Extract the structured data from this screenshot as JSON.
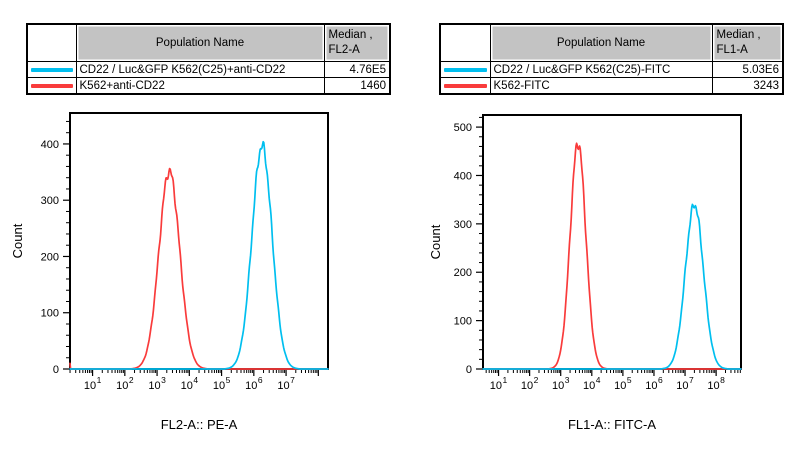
{
  "colors": {
    "cyan_series": "#00bfef",
    "red_series": "#f93b3b",
    "table_header_bg": "#c3c3c3",
    "axis": "#000000"
  },
  "panels": [
    {
      "table": {
        "header": {
          "population": "Population Name",
          "median_line1": "Median ,",
          "median_line2": "FL2-A"
        },
        "rows": [
          {
            "swatch_color": "#00bfef",
            "name": "CD22 / Luc&GFP K562(C25)+anti-CD22",
            "median": "4.76E5"
          },
          {
            "swatch_color": "#f93b3b",
            "name": "K562+anti-CD22",
            "median": "1460"
          }
        ]
      }
    },
    {
      "table": {
        "header": {
          "population": "Population Name",
          "median_line1": "Median ,",
          "median_line2": "FL1-A"
        },
        "rows": [
          {
            "swatch_color": "#00bfef",
            "name": "CD22 / Luc&GFP K562(C25)-FITC",
            "median": "5.03E6"
          },
          {
            "swatch_color": "#f93b3b",
            "name": "K562-FITC",
            "median": "3243"
          }
        ]
      }
    }
  ],
  "chart_data": [
    {
      "type": "line",
      "subtype": "flow-cytometry-histogram-overlay",
      "title": "",
      "xlabel": "FL2-A:: PE-A",
      "ylabel": "Count",
      "x_scale": "log10",
      "x_log_range": [
        0.3,
        8.3
      ],
      "x_tick_decades": [
        1,
        2,
        3,
        4,
        5,
        6,
        7
      ],
      "ylim": [
        0,
        455
      ],
      "y_ticks": [
        0,
        100,
        200,
        300,
        400
      ],
      "y_minor_step": 20,
      "grid": false,
      "legend_position": "table-above",
      "series": [
        {
          "name": "K562+anti-CD22",
          "color": "#f93b3b",
          "median_label": "1460",
          "peak_x": 2400,
          "peak_count": 352,
          "sigma_log10": 0.32,
          "left_edge_spike_count": 10
        },
        {
          "name": "CD22 / Luc&GFP K562(C25)+anti-CD22",
          "color": "#00bfef",
          "median_label": "4.76E5",
          "peak_x": 1800000,
          "peak_count": 397,
          "sigma_log10": 0.31
        }
      ]
    },
    {
      "type": "line",
      "subtype": "flow-cytometry-histogram-overlay",
      "title": "",
      "xlabel": "FL1-A:: FITC-A",
      "ylabel": "Count",
      "x_scale": "log10",
      "x_log_range": [
        0.5,
        8.8
      ],
      "x_tick_decades": [
        1,
        2,
        3,
        4,
        5,
        6,
        7,
        8
      ],
      "ylim": [
        0,
        525
      ],
      "y_ticks": [
        0,
        100,
        200,
        300,
        400,
        500
      ],
      "y_minor_step": 20,
      "grid": false,
      "legend_position": "table-above",
      "series": [
        {
          "name": "K562-FITC",
          "color": "#f93b3b",
          "median_label": "3243",
          "peak_x": 3600,
          "peak_count": 468,
          "sigma_log10": 0.25
        },
        {
          "name": "CD22 / Luc&GFP K562(C25)-FITC",
          "color": "#00bfef",
          "median_label": "5.03E6",
          "peak_x": 20000000,
          "peak_count": 340,
          "sigma_log10": 0.29
        }
      ]
    }
  ]
}
